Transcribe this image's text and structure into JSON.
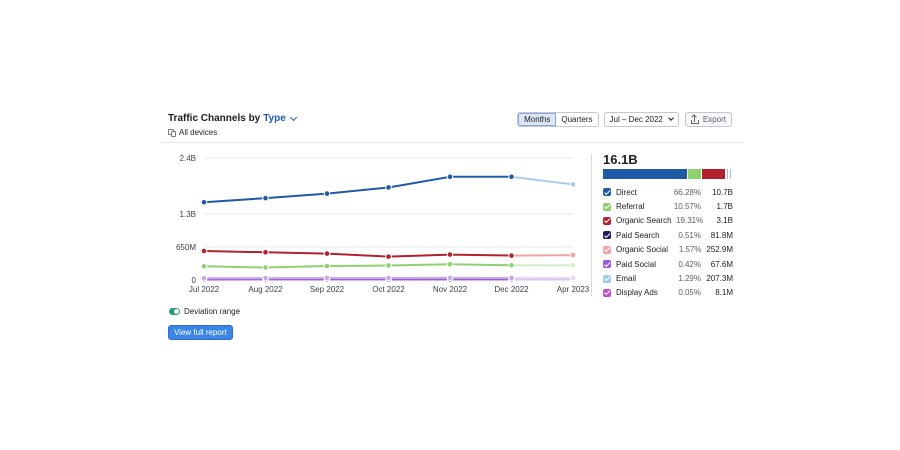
{
  "widget": {
    "title_prefix": "Traffic Channels by",
    "title_type": "Type",
    "devices": "All devices",
    "period_buttons": [
      "Months",
      "Quarters"
    ],
    "active_period": "Months",
    "date_range": "Jul – Dec 2022",
    "export_label": "Export",
    "deviation_label": "Deviation range",
    "deviation_enabled": true,
    "view_report_label": "View full report"
  },
  "legend": {
    "total": "16.1B",
    "items": [
      {
        "name": "Direct",
        "pct": "66.28%",
        "value": "10.7B",
        "color": "#1f5aa6",
        "share": 66.28
      },
      {
        "name": "Referral",
        "pct": "10.57%",
        "value": "1.7B",
        "color": "#8fd16d",
        "share": 10.57
      },
      {
        "name": "Organic Search",
        "pct": "19.31%",
        "value": "3.1B",
        "color": "#b3202e",
        "share": 19.31
      },
      {
        "name": "Paid Search",
        "pct": "0.51%",
        "value": "81.8M",
        "color": "#241a5e",
        "share": 0.51
      },
      {
        "name": "Organic Social",
        "pct": "1.57%",
        "value": "252.9M",
        "color": "#f2a3a8",
        "share": 1.57
      },
      {
        "name": "Paid Social",
        "pct": "0.42%",
        "value": "67.6M",
        "color": "#9c5ad9",
        "share": 0.42
      },
      {
        "name": "Email",
        "pct": "1.29%",
        "value": "207.3M",
        "color": "#9fc8ef",
        "share": 1.29
      },
      {
        "name": "Display Ads",
        "pct": "0.05%",
        "value": "8.1M",
        "color": "#c24ec4",
        "share": 0.05
      }
    ]
  },
  "chart_data": {
    "type": "line",
    "categories": [
      "Jul 2022",
      "Aug 2022",
      "Sep 2022",
      "Oct 2022",
      "Nov 2022",
      "Dec 2022",
      "Apr 2023"
    ],
    "ylim": [
      0,
      2400000000
    ],
    "y_ticks": [
      {
        "value": 2400000000,
        "label": "2.4B"
      },
      {
        "value": 1300000000,
        "label": "1.3B"
      },
      {
        "value": 650000000,
        "label": "650M"
      },
      {
        "value": 0,
        "label": "0"
      }
    ],
    "grid": true,
    "forecast_from_index": 6,
    "series": [
      {
        "name": "Direct",
        "color": "#1f5aa6",
        "forecast_color": "#a6c8ec",
        "values": [
          1530000000,
          1610000000,
          1700000000,
          1820000000,
          2030000000,
          2030000000,
          1880000000
        ]
      },
      {
        "name": "Organic Search",
        "color": "#b3202e",
        "forecast_color": "#f2a3a8",
        "values": [
          570000000,
          545000000,
          520000000,
          460000000,
          500000000,
          480000000,
          490000000
        ]
      },
      {
        "name": "Referral",
        "color": "#8fd16d",
        "forecast_color": "#d3edc6",
        "values": [
          270000000,
          245000000,
          275000000,
          285000000,
          310000000,
          290000000,
          290000000
        ]
      },
      {
        "name": "Organic Social",
        "color": "#c7a6e9",
        "forecast_color": "#e6d6f5",
        "values": [
          35000000,
          38000000,
          40000000,
          40000000,
          42000000,
          40000000,
          40000000
        ]
      },
      {
        "name": "Paid Social",
        "color": "#9c5ad9",
        "forecast_color": "#d9c2f0",
        "values": [
          10000000,
          12000000,
          12000000,
          11000000,
          13000000,
          12000000,
          12000000
        ]
      }
    ]
  }
}
